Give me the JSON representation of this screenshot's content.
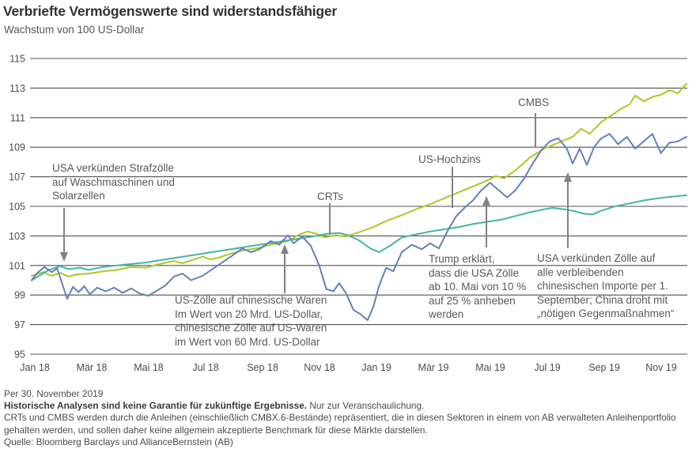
{
  "chart_data": {
    "type": "line",
    "title": "Verbriefte Vermögenswerte sind widerstandsfähiger",
    "subtitle": "Wachstum von 100 US-Dollar",
    "xlabel": "",
    "ylabel": "",
    "ylim": [
      95,
      115
    ],
    "grid": true,
    "legend_position": "inline-labels",
    "x_unit": "Monate seit Jan 2018",
    "yticks": [
      95,
      97,
      99,
      101,
      103,
      105,
      107,
      109,
      111,
      113,
      115
    ],
    "xticks": [
      {
        "label": "Jan 18",
        "m": 0
      },
      {
        "label": "Mär 18",
        "m": 2
      },
      {
        "label": "Mai 18",
        "m": 4
      },
      {
        "label": "Jul 18",
        "m": 6
      },
      {
        "label": "Sep 18",
        "m": 8
      },
      {
        "label": "Nov 18",
        "m": 10
      },
      {
        "label": "Jan 19",
        "m": 12
      },
      {
        "label": "Mär 19",
        "m": 14
      },
      {
        "label": "Mai 19",
        "m": 16
      },
      {
        "label": "Jul 19",
        "m": 18
      },
      {
        "label": "Sep 19",
        "m": 20
      },
      {
        "label": "Nov 19",
        "m": 22
      }
    ],
    "series": [
      {
        "name": "CMBS",
        "color": "#aec725",
        "points": [
          [
            0,
            100.3
          ],
          [
            0.4,
            100.55
          ],
          [
            0.7,
            100.3
          ],
          [
            1,
            100.5
          ],
          [
            1.3,
            100.25
          ],
          [
            1.6,
            100.4
          ],
          [
            2,
            100.45
          ],
          [
            2.5,
            100.6
          ],
          [
            3,
            100.7
          ],
          [
            3.5,
            100.9
          ],
          [
            4,
            100.85
          ],
          [
            4.5,
            101.1
          ],
          [
            5,
            101.3
          ],
          [
            5.3,
            101.15
          ],
          [
            5.6,
            101.35
          ],
          [
            6,
            101.6
          ],
          [
            6.3,
            101.4
          ],
          [
            6.6,
            101.55
          ],
          [
            7,
            101.8
          ],
          [
            7.5,
            102.05
          ],
          [
            8,
            102.2
          ],
          [
            8.5,
            102.45
          ],
          [
            9,
            102.65
          ],
          [
            9.4,
            103.1
          ],
          [
            9.7,
            103.3
          ],
          [
            10,
            103.15
          ],
          [
            10.3,
            102.9
          ],
          [
            10.7,
            103.05
          ],
          [
            11,
            102.95
          ],
          [
            11.5,
            103.25
          ],
          [
            12,
            103.6
          ],
          [
            12.5,
            104.05
          ],
          [
            13,
            104.4
          ],
          [
            13.5,
            104.8
          ],
          [
            14,
            105.15
          ],
          [
            14.5,
            105.55
          ],
          [
            15,
            105.95
          ],
          [
            15.5,
            106.35
          ],
          [
            16,
            106.75
          ],
          [
            16.3,
            107.05
          ],
          [
            16.6,
            106.9
          ],
          [
            17,
            107.45
          ],
          [
            17.5,
            108.3
          ],
          [
            18,
            108.9
          ],
          [
            18.5,
            109.3
          ],
          [
            19,
            109.7
          ],
          [
            19.3,
            110.25
          ],
          [
            19.6,
            109.9
          ],
          [
            20,
            110.7
          ],
          [
            20.4,
            111.2
          ],
          [
            20.7,
            111.6
          ],
          [
            21,
            111.9
          ],
          [
            21.2,
            112.5
          ],
          [
            21.5,
            112.1
          ],
          [
            21.8,
            112.4
          ],
          [
            22.1,
            112.55
          ],
          [
            22.4,
            112.85
          ],
          [
            22.7,
            112.65
          ],
          [
            23,
            113.3
          ]
        ]
      },
      {
        "name": "CRTs",
        "color": "#45b5a4",
        "points": [
          [
            0,
            100.0
          ],
          [
            0.3,
            100.35
          ],
          [
            0.6,
            100.7
          ],
          [
            1,
            100.95
          ],
          [
            1.3,
            100.75
          ],
          [
            1.7,
            100.85
          ],
          [
            2,
            100.7
          ],
          [
            2.5,
            100.9
          ],
          [
            3,
            101.0
          ],
          [
            3.5,
            101.1
          ],
          [
            4,
            101.2
          ],
          [
            4.5,
            101.35
          ],
          [
            5,
            101.5
          ],
          [
            5.5,
            101.65
          ],
          [
            6,
            101.8
          ],
          [
            6.5,
            101.95
          ],
          [
            7,
            102.1
          ],
          [
            7.5,
            102.25
          ],
          [
            8,
            102.4
          ],
          [
            8.5,
            102.55
          ],
          [
            9,
            102.7
          ],
          [
            9.5,
            102.85
          ],
          [
            10,
            103.0
          ],
          [
            10.4,
            103.15
          ],
          [
            10.8,
            103.2
          ],
          [
            11.1,
            103.05
          ],
          [
            11.5,
            102.7
          ],
          [
            11.9,
            102.15
          ],
          [
            12.2,
            101.9
          ],
          [
            12.6,
            102.35
          ],
          [
            13,
            102.9
          ],
          [
            13.5,
            103.1
          ],
          [
            14,
            103.3
          ],
          [
            14.5,
            103.45
          ],
          [
            15,
            103.6
          ],
          [
            15.5,
            103.8
          ],
          [
            16,
            103.95
          ],
          [
            16.5,
            104.1
          ],
          [
            17,
            104.35
          ],
          [
            17.5,
            104.6
          ],
          [
            18,
            104.8
          ],
          [
            18.3,
            104.9
          ],
          [
            18.7,
            104.8
          ],
          [
            19,
            104.7
          ],
          [
            19.4,
            104.5
          ],
          [
            19.7,
            104.45
          ],
          [
            20,
            104.7
          ],
          [
            20.5,
            105.0
          ],
          [
            21,
            105.2
          ],
          [
            21.5,
            105.4
          ],
          [
            22,
            105.55
          ],
          [
            22.5,
            105.65
          ],
          [
            23,
            105.75
          ]
        ]
      },
      {
        "name": "US-Hochzins",
        "color": "#6280bb",
        "points": [
          [
            0,
            100.0
          ],
          [
            0.2,
            100.5
          ],
          [
            0.45,
            100.9
          ],
          [
            0.7,
            100.55
          ],
          [
            0.9,
            100.8
          ],
          [
            1.1,
            99.6
          ],
          [
            1.25,
            98.75
          ],
          [
            1.45,
            99.55
          ],
          [
            1.65,
            99.2
          ],
          [
            1.85,
            99.6
          ],
          [
            2.05,
            99.05
          ],
          [
            2.3,
            99.5
          ],
          [
            2.6,
            99.25
          ],
          [
            2.9,
            99.5
          ],
          [
            3.2,
            99.15
          ],
          [
            3.5,
            99.45
          ],
          [
            3.8,
            99.1
          ],
          [
            4.1,
            98.95
          ],
          [
            4.4,
            99.3
          ],
          [
            4.7,
            99.65
          ],
          [
            5,
            100.25
          ],
          [
            5.3,
            100.45
          ],
          [
            5.6,
            100.0
          ],
          [
            6,
            100.3
          ],
          [
            6.5,
            100.95
          ],
          [
            7,
            101.6
          ],
          [
            7.4,
            102.15
          ],
          [
            7.7,
            101.9
          ],
          [
            8,
            102.1
          ],
          [
            8.4,
            102.65
          ],
          [
            8.7,
            102.4
          ],
          [
            9,
            103.05
          ],
          [
            9.2,
            102.5
          ],
          [
            9.5,
            102.95
          ],
          [
            9.8,
            102.35
          ],
          [
            10.1,
            101.0
          ],
          [
            10.35,
            99.4
          ],
          [
            10.6,
            99.25
          ],
          [
            10.8,
            99.8
          ],
          [
            11.05,
            99.1
          ],
          [
            11.3,
            98.0
          ],
          [
            11.55,
            97.7
          ],
          [
            11.8,
            97.3
          ],
          [
            12,
            98.2
          ],
          [
            12.2,
            99.6
          ],
          [
            12.45,
            100.85
          ],
          [
            12.7,
            100.6
          ],
          [
            13,
            101.9
          ],
          [
            13.35,
            102.4
          ],
          [
            13.7,
            102.1
          ],
          [
            14,
            102.5
          ],
          [
            14.3,
            102.15
          ],
          [
            14.6,
            103.3
          ],
          [
            14.9,
            104.3
          ],
          [
            15.2,
            104.9
          ],
          [
            15.5,
            105.4
          ],
          [
            15.8,
            106.1
          ],
          [
            16.1,
            106.6
          ],
          [
            16.4,
            106.1
          ],
          [
            16.7,
            105.6
          ],
          [
            17,
            106.1
          ],
          [
            17.3,
            106.9
          ],
          [
            17.6,
            107.9
          ],
          [
            17.9,
            108.8
          ],
          [
            18.2,
            109.4
          ],
          [
            18.5,
            109.6
          ],
          [
            18.8,
            108.9
          ],
          [
            19,
            107.9
          ],
          [
            19.25,
            108.9
          ],
          [
            19.5,
            107.8
          ],
          [
            19.75,
            109.0
          ],
          [
            20,
            109.6
          ],
          [
            20.3,
            109.9
          ],
          [
            20.6,
            109.2
          ],
          [
            20.9,
            109.7
          ],
          [
            21.2,
            108.9
          ],
          [
            21.5,
            109.4
          ],
          [
            21.8,
            109.9
          ],
          [
            22.1,
            108.6
          ],
          [
            22.4,
            109.3
          ],
          [
            22.7,
            109.4
          ],
          [
            23,
            109.7
          ]
        ]
      }
    ]
  },
  "annotations": {
    "strafzoelle": "USA verkünden Strafzölle\nauf Waschmaschinen und\nSolarzellen",
    "uszoelle": "US-Zölle auf chinesische Waren\nIm Wert von 20 Mrd. US-Dollar,\nchinesische Zölle auf US-Waren\nim Wert von 60 Mrd. US-Dollar",
    "trump": "Trump erklärt,\ndass die USA Zölle\nab 10. Mai von 10 %\nauf 25 % anheben\nwerden",
    "verbleibende": "USA verkünden Zölle auf\nalle verbleibenden\nchinesischen Importe per 1.\nSeptember; China droht mit\n„nötigen Gegenmaßnahmen“"
  },
  "footer": {
    "as_of": "Per 30. November 2019",
    "disclaimer_bold": "Historische Analysen sind keine Garantie für zukünftige Ergebnisse.",
    "disclaimer_rest": " Nur zur Veranschaulichung.",
    "note": "CRTs und CMBS werden durch die Anleihen (einschließlich CMBX.6-Bestände) repräsentiert, die in diesen Sektoren in einem von AB verwalteten Anleihenportfolio gehalten werden, und sollen daher keine allgemein akzeptierte Benchmark für diese Märkte darstellen.",
    "source": "Quelle: Bloomberg Barclays und AllianceBernstein (AB)"
  },
  "colors": {
    "cmbs_line": "#aec725",
    "crts_line": "#45b5a4",
    "us_hochzins_line": "#6280bb",
    "gridline": "#515257",
    "annotation_text": "#58595b",
    "arrow": "#808285",
    "title_text": "#323232"
  }
}
